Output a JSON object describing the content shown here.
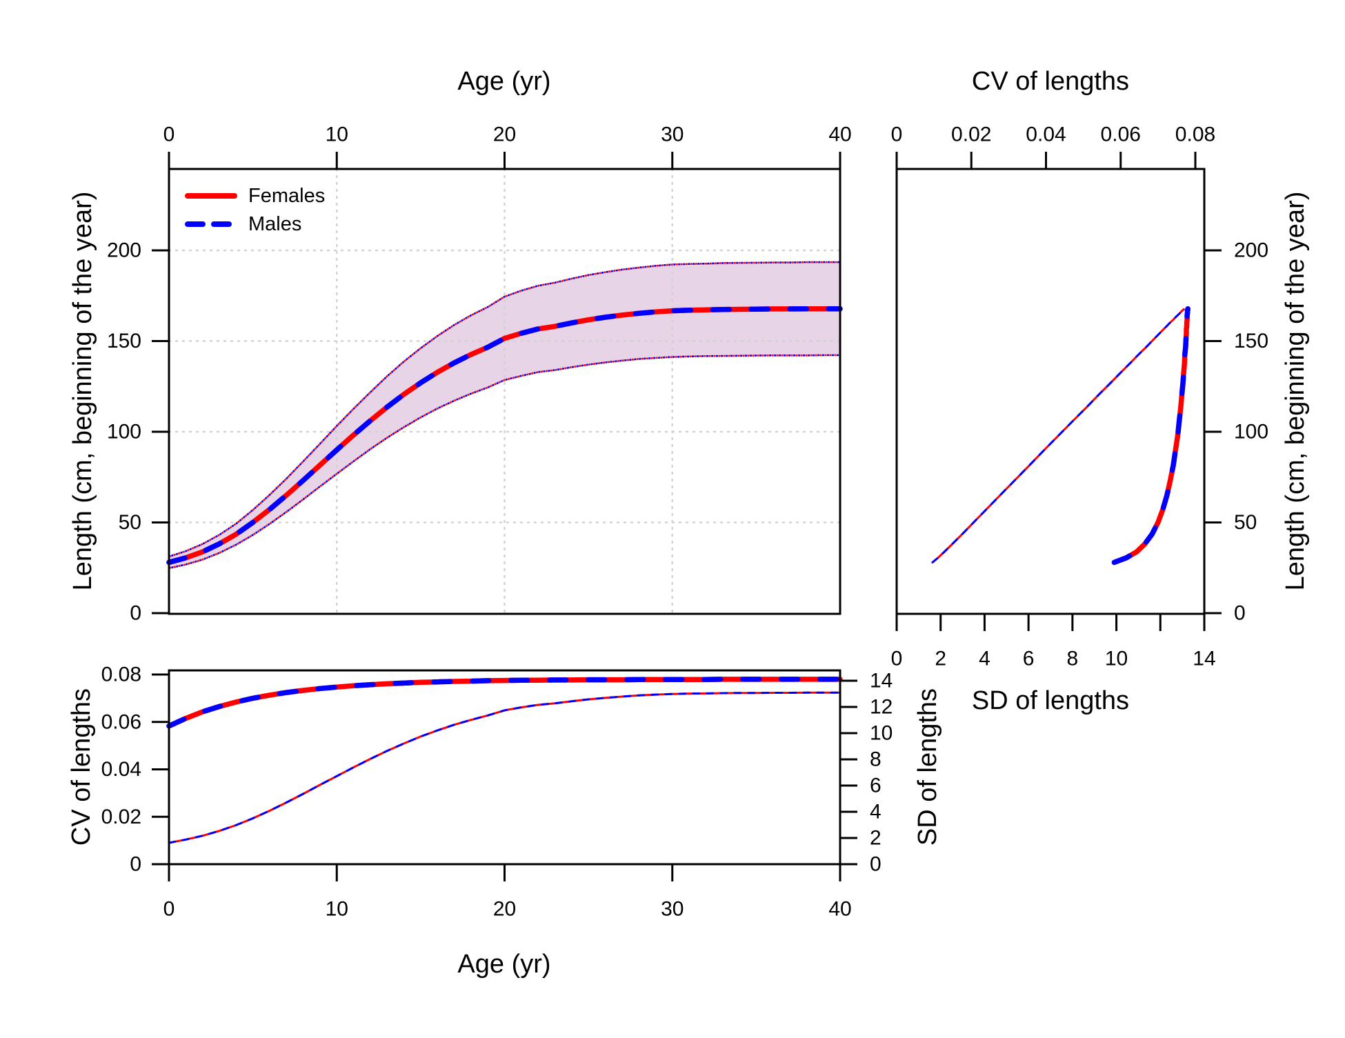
{
  "figure": {
    "background": "#ffffff",
    "colors": {
      "females": "#ff0000",
      "males": "#0000ff",
      "band_fill": "#e7d4e7",
      "grid": "#d2d2d2",
      "axis": "#000000",
      "text": "#000000"
    }
  },
  "chart_data": {
    "type": "line",
    "note": "Three-panel growth summary. Female and male curves are identical and overlap (drawn red solid with blue dashes on top). Shaded band in age panel = interval of +/- 1.96 * CV around mean length.",
    "growth_table": {
      "age": [
        0,
        1,
        2,
        3,
        4,
        5,
        6,
        7,
        8,
        9,
        10,
        11,
        12,
        13,
        14,
        15,
        16,
        17,
        18,
        19,
        20,
        21,
        22,
        23,
        24,
        25,
        26,
        27,
        28,
        29,
        30,
        31,
        32,
        33,
        34,
        35,
        36,
        37,
        38,
        39,
        40
      ],
      "length_cm": [
        28.0,
        30.5,
        33.8,
        38.2,
        43.5,
        50.0,
        57.2,
        65.0,
        73.2,
        81.6,
        90.0,
        98.2,
        106.1,
        113.6,
        120.6,
        127.0,
        132.8,
        138.0,
        142.6,
        146.6,
        151.5,
        154.3,
        156.7,
        158.1,
        160.0,
        161.7,
        163.1,
        164.3,
        165.3,
        166.1,
        166.7,
        167.0,
        167.2,
        167.4,
        167.5,
        167.6,
        167.7,
        167.7,
        167.8,
        167.8,
        167.8
      ],
      "cv_of_length": [
        0.0583,
        0.0615,
        0.0643,
        0.0665,
        0.0684,
        0.07,
        0.0713,
        0.0724,
        0.0733,
        0.0741,
        0.0747,
        0.0753,
        0.0757,
        0.0761,
        0.0764,
        0.0767,
        0.0769,
        0.0771,
        0.0772,
        0.0774,
        0.0775,
        0.0776,
        0.0776,
        0.0777,
        0.0777,
        0.0778,
        0.0778,
        0.0778,
        0.0779,
        0.0779,
        0.0779,
        0.0779,
        0.0779,
        0.078,
        0.078,
        0.078,
        0.078,
        0.078,
        0.078,
        0.078,
        0.078
      ],
      "sd_of_length": [
        1.63,
        1.88,
        2.17,
        2.54,
        2.98,
        3.5,
        4.08,
        4.71,
        5.37,
        6.05,
        6.72,
        7.39,
        8.03,
        8.65,
        9.21,
        9.74,
        10.21,
        10.64,
        11.01,
        11.35,
        11.74,
        11.97,
        12.16,
        12.28,
        12.43,
        12.58,
        12.69,
        12.79,
        12.88,
        12.94,
        12.99,
        13.02,
        13.03,
        13.05,
        13.07,
        13.07,
        13.08,
        13.08,
        13.09,
        13.09,
        13.09
      ],
      "ci_upper_length": [
        31.2,
        34.2,
        38.1,
        43.2,
        49.3,
        56.9,
        65.2,
        74.2,
        83.7,
        93.4,
        103.2,
        112.7,
        121.8,
        130.6,
        138.7,
        146.1,
        152.8,
        158.9,
        164.2,
        168.8,
        174.5,
        177.8,
        180.5,
        182.2,
        184.4,
        186.4,
        188.0,
        189.4,
        190.5,
        191.5,
        192.2,
        192.5,
        192.7,
        193.0,
        193.1,
        193.2,
        193.3,
        193.3,
        193.5,
        193.5,
        193.5
      ],
      "ci_lower_length": [
        24.8,
        26.8,
        29.5,
        33.2,
        37.7,
        43.1,
        49.2,
        55.8,
        62.7,
        69.8,
        76.8,
        83.7,
        90.4,
        96.7,
        102.5,
        107.9,
        112.8,
        117.1,
        121.0,
        124.4,
        128.5,
        130.8,
        132.9,
        134.0,
        135.6,
        137.0,
        138.2,
        139.2,
        140.1,
        140.7,
        141.2,
        141.5,
        141.7,
        141.8,
        141.9,
        142.0,
        142.1,
        142.1,
        142.1,
        142.2,
        142.2
      ]
    },
    "panels": [
      {
        "id": "length_vs_age",
        "type": "area+line",
        "xlabel": "Age (yr)",
        "ylabel": "Length (cm, beginning of the year)",
        "xlim": [
          0,
          40
        ],
        "ylim": [
          0,
          245
        ],
        "x_ticks": [
          0,
          10,
          20,
          30,
          40
        ],
        "y_ticks": [
          0,
          50,
          100,
          150,
          200
        ],
        "grid": "dotted",
        "band": [
          "ci_lower_length",
          "ci_upper_length"
        ],
        "legend": {
          "position": "top-left",
          "entries": [
            {
              "label": "Females",
              "color": "#ff0000",
              "line": "solid"
            },
            {
              "label": "Males",
              "color": "#0000ff",
              "line": "dashed"
            }
          ]
        }
      },
      {
        "id": "cv_and_sd_vs_length",
        "type": "line",
        "top_xlabel": "CV of lengths",
        "bottom_xlabel": "SD of lengths",
        "right_ylabel": "Length (cm, beginning of the year)",
        "top_ticks": [
          0,
          0.02,
          0.04,
          0.06,
          0.08
        ],
        "top_tick_labels": [
          "0",
          "0.02",
          "0.04",
          "0.06",
          "0.08"
        ],
        "bottom_ticks": [
          0,
          2,
          4,
          6,
          8,
          10,
          12,
          14
        ],
        "bottom_tick_labels": [
          "0",
          "2",
          "4",
          "6",
          "8",
          "10",
          "",
          "14"
        ],
        "right_ticks": [
          0,
          50,
          100,
          150,
          200
        ],
        "series_desc": "thick curve: CV of lengths (top axis) vs length; thin dashed line: SD of lengths (bottom axis) vs length"
      },
      {
        "id": "cv_and_sd_vs_age",
        "type": "line",
        "xlabel": "Age (yr)",
        "left_ylabel": "CV of lengths",
        "right_ylabel": "SD of lengths",
        "x_ticks": [
          0,
          10,
          20,
          30,
          40
        ],
        "left_ticks": [
          0,
          0.02,
          0.04,
          0.06,
          0.08
        ],
        "left_tick_labels": [
          "0",
          "0.02",
          "0.04",
          "0.06",
          "0.08"
        ],
        "right_ticks": [
          0,
          2,
          4,
          6,
          8,
          10,
          12,
          14
        ],
        "right_tick_labels": [
          "0",
          "2",
          "4",
          "6",
          "8",
          "10",
          "12",
          "14"
        ],
        "series_desc": "thick curve: CV of lengths (left axis) vs age; thin dashed line: SD of lengths (right axis) vs age"
      }
    ]
  }
}
